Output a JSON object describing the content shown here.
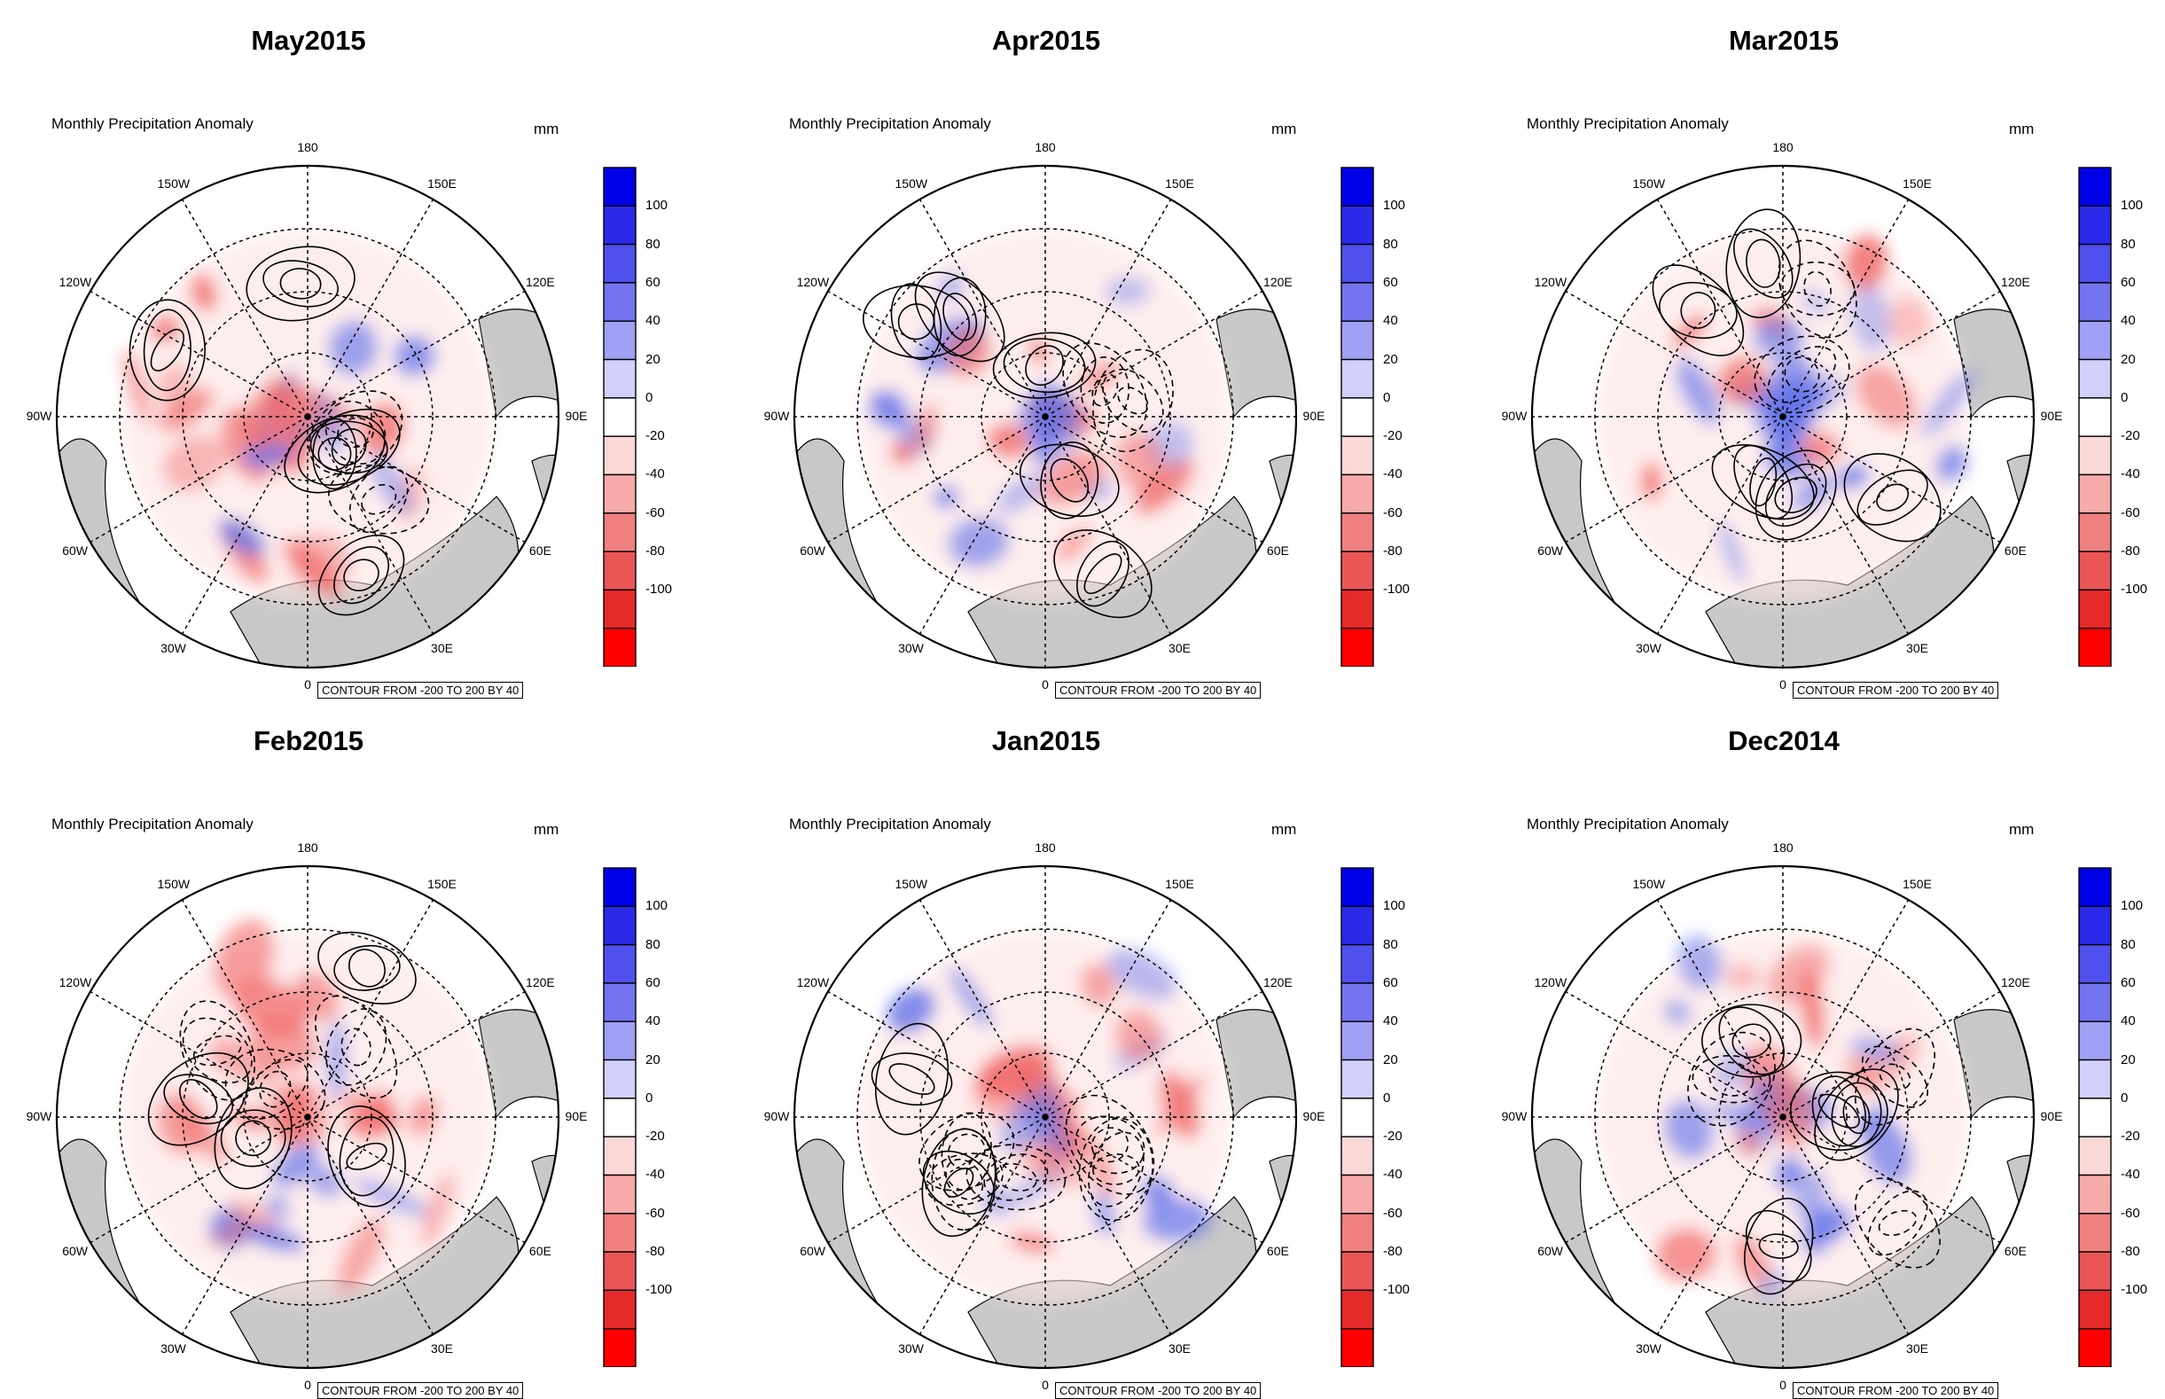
{
  "panels": [
    {
      "title": "May2015",
      "seed": 3
    },
    {
      "title": "Apr2015",
      "seed": 11
    },
    {
      "title": "Mar2015",
      "seed": 19
    },
    {
      "title": "Feb2015",
      "seed": 27
    },
    {
      "title": "Jan2015",
      "seed": 35
    },
    {
      "title": "Dec2014",
      "seed": 43
    }
  ],
  "subtitle": "Monthly Precipitation Anomaly",
  "unit": "mm",
  "contour_note": "CONTOUR FROM -200 TO 200 BY 40",
  "longitude_labels": [
    "180",
    "150E",
    "120E",
    "90E",
    "60E",
    "30E",
    "0",
    "30W",
    "60W",
    "90W",
    "120W",
    "150W"
  ],
  "colorbar": {
    "labels": [
      "100",
      "80",
      "60",
      "40",
      "20",
      "0",
      "-20",
      "-40",
      "-60",
      "-80",
      "-100"
    ],
    "colors": [
      "#0000e8",
      "#2a2ae8",
      "#5050ee",
      "#7474f0",
      "#a0a0f5",
      "#d0d0fa",
      "#ffffff",
      "#fbd8d8",
      "#f6aaaa",
      "#f08080",
      "#ea5656",
      "#e52a2a",
      "#ff0000"
    ]
  },
  "colors": {
    "land": "#c8c8c8",
    "pos": "#4a5be6",
    "neg": "#ef5252"
  }
}
